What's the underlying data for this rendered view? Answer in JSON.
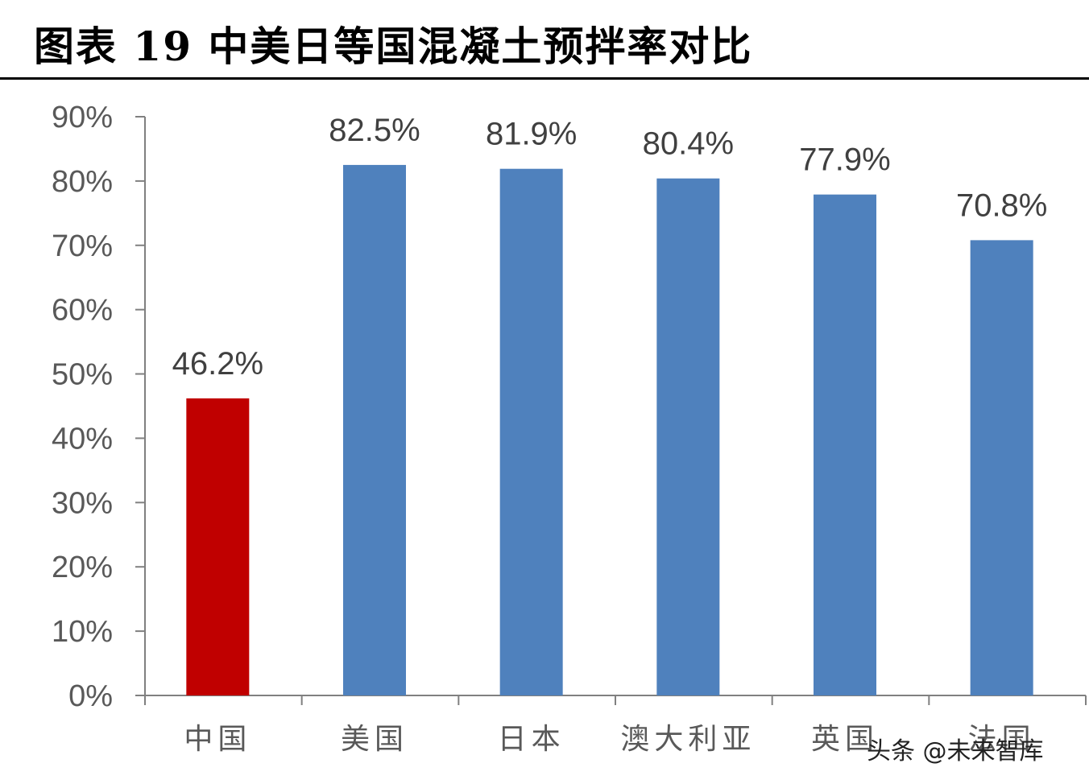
{
  "figure": {
    "title": "图表 19  中美日等国混凝土预拌率对比"
  },
  "watermark": "头条 @未来智库",
  "colors": {
    "highlight": "#C00000",
    "default": "#4F81BD",
    "axis": "#808080",
    "tick_text": "#595959",
    "label_text": "#404040"
  },
  "chart_data": {
    "type": "bar",
    "title": "",
    "xlabel": "",
    "ylabel": "",
    "categories": [
      "中国",
      "美国",
      "日本",
      "澳大利亚",
      "英国",
      "法国"
    ],
    "values": [
      46.2,
      82.5,
      81.9,
      80.4,
      77.9,
      70.8
    ],
    "data_labels": [
      "46.2%",
      "82.5%",
      "81.9%",
      "80.4%",
      "77.9%",
      "70.8%"
    ],
    "bar_colors": [
      "#C00000",
      "#4F81BD",
      "#4F81BD",
      "#4F81BD",
      "#4F81BD",
      "#4F81BD"
    ],
    "ylim": [
      0,
      90
    ],
    "yticks": [
      0,
      10,
      20,
      30,
      40,
      50,
      60,
      70,
      80,
      90
    ],
    "ytick_labels": [
      "0%",
      "10%",
      "20%",
      "30%",
      "40%",
      "50%",
      "60%",
      "70%",
      "80%",
      "90%"
    ],
    "grid": false,
    "legend": "none"
  }
}
